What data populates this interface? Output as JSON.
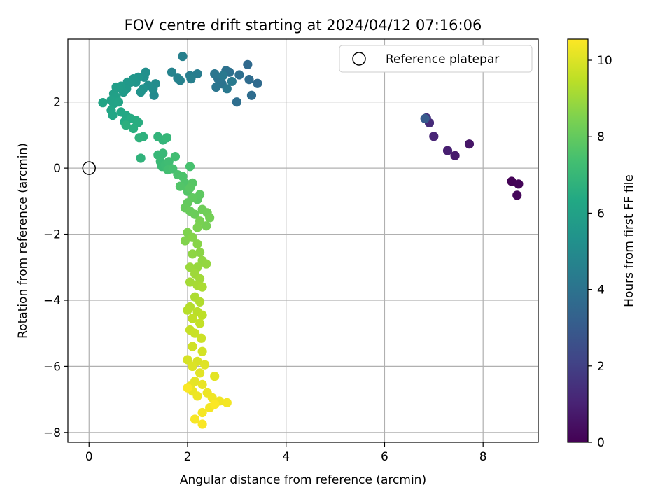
{
  "chart_data": {
    "type": "scatter",
    "title": "FOV centre drift starting at 2024/04/12 07:16:06",
    "xlabel": "Angular distance from reference (arcmin)",
    "ylabel": "Rotation from reference (arcmin)",
    "xlim": [
      -0.43,
      9.12
    ],
    "ylim": [
      -8.3,
      3.9
    ],
    "xticks": [
      0,
      2,
      4,
      6,
      8
    ],
    "yticks": [
      2,
      0,
      -2,
      -4,
      -6,
      -8
    ],
    "grid": true,
    "legend": {
      "position": "top-right",
      "entries": [
        "Reference platepar"
      ]
    },
    "reference_point": {
      "x": 0,
      "y": 0,
      "marker": "open-circle",
      "color": "#000000"
    },
    "colorbar": {
      "label": "Hours from first FF file",
      "range": [
        0,
        10.55
      ],
      "ticks": [
        0,
        2,
        4,
        6,
        8,
        10
      ],
      "colormap": "viridis"
    },
    "series": [
      {
        "points": [
          {
            "x": 8.58,
            "y": -0.4,
            "c": 0.05
          },
          {
            "x": 8.72,
            "y": -0.48,
            "c": 0.12
          },
          {
            "x": 8.69,
            "y": -0.82,
            "c": 0.2
          },
          {
            "x": 7.72,
            "y": 0.73,
            "c": 0.6
          },
          {
            "x": 7.43,
            "y": 0.38,
            "c": 0.75
          },
          {
            "x": 7.28,
            "y": 0.53,
            "c": 0.9
          },
          {
            "x": 7.0,
            "y": 0.96,
            "c": 1.1
          },
          {
            "x": 6.91,
            "y": 1.37,
            "c": 1.3
          },
          {
            "x": 6.85,
            "y": 1.52,
            "c": 1.5
          },
          {
            "x": 6.82,
            "y": 1.5,
            "c": 3.0
          },
          {
            "x": 3.22,
            "y": 3.13,
            "c": 3.6
          },
          {
            "x": 3.42,
            "y": 2.56,
            "c": 3.65
          },
          {
            "x": 3.25,
            "y": 2.68,
            "c": 3.7
          },
          {
            "x": 3.3,
            "y": 2.2,
            "c": 3.75
          },
          {
            "x": 3.0,
            "y": 2.0,
            "c": 3.8
          },
          {
            "x": 3.05,
            "y": 2.82,
            "c": 3.85
          },
          {
            "x": 2.85,
            "y": 2.9,
            "c": 3.9
          },
          {
            "x": 2.78,
            "y": 2.95,
            "c": 3.95
          },
          {
            "x": 2.7,
            "y": 2.55,
            "c": 4.0
          },
          {
            "x": 2.62,
            "y": 2.7,
            "c": 4.05
          },
          {
            "x": 2.58,
            "y": 2.45,
            "c": 4.1
          },
          {
            "x": 2.55,
            "y": 2.85,
            "c": 4.15
          },
          {
            "x": 2.8,
            "y": 2.4,
            "c": 4.2
          },
          {
            "x": 2.72,
            "y": 2.8,
            "c": 4.25
          },
          {
            "x": 2.9,
            "y": 2.62,
            "c": 4.3
          },
          {
            "x": 2.2,
            "y": 2.85,
            "c": 4.4
          },
          {
            "x": 2.05,
            "y": 2.8,
            "c": 4.45
          },
          {
            "x": 2.07,
            "y": 2.7,
            "c": 4.5
          },
          {
            "x": 1.9,
            "y": 3.38,
            "c": 4.55
          },
          {
            "x": 1.85,
            "y": 2.65,
            "c": 4.6
          },
          {
            "x": 1.8,
            "y": 2.72,
            "c": 4.65
          },
          {
            "x": 1.68,
            "y": 2.9,
            "c": 4.7
          },
          {
            "x": 1.32,
            "y": 2.2,
            "c": 5.0
          },
          {
            "x": 1.35,
            "y": 2.55,
            "c": 5.05
          },
          {
            "x": 1.3,
            "y": 2.4,
            "c": 5.1
          },
          {
            "x": 1.2,
            "y": 2.5,
            "c": 5.15
          },
          {
            "x": 1.15,
            "y": 2.9,
            "c": 5.2
          },
          {
            "x": 1.12,
            "y": 2.75,
            "c": 5.25
          },
          {
            "x": 1.1,
            "y": 2.4,
            "c": 5.3
          },
          {
            "x": 1.05,
            "y": 2.3,
            "c": 5.35
          },
          {
            "x": 1.0,
            "y": 2.75,
            "c": 5.4
          },
          {
            "x": 0.95,
            "y": 2.6,
            "c": 5.45
          },
          {
            "x": 0.9,
            "y": 2.7,
            "c": 5.5
          },
          {
            "x": 0.85,
            "y": 2.6,
            "c": 5.55
          },
          {
            "x": 0.78,
            "y": 2.6,
            "c": 5.6
          },
          {
            "x": 0.76,
            "y": 2.4,
            "c": 5.65
          },
          {
            "x": 0.7,
            "y": 2.3,
            "c": 5.7
          },
          {
            "x": 0.65,
            "y": 2.48,
            "c": 5.75
          },
          {
            "x": 0.6,
            "y": 2.42,
            "c": 5.8
          },
          {
            "x": 0.55,
            "y": 2.45,
            "c": 5.85
          },
          {
            "x": 0.5,
            "y": 2.25,
            "c": 5.9
          },
          {
            "x": 0.55,
            "y": 2.15,
            "c": 5.95
          },
          {
            "x": 0.45,
            "y": 2.05,
            "c": 6.0
          },
          {
            "x": 0.5,
            "y": 1.95,
            "c": 6.05
          },
          {
            "x": 0.6,
            "y": 2.0,
            "c": 6.1
          },
          {
            "x": 0.28,
            "y": 1.98,
            "c": 6.15
          },
          {
            "x": 0.45,
            "y": 1.75,
            "c": 6.2
          },
          {
            "x": 0.48,
            "y": 1.6,
            "c": 6.25
          },
          {
            "x": 0.65,
            "y": 1.7,
            "c": 6.3
          },
          {
            "x": 0.75,
            "y": 1.6,
            "c": 6.35
          },
          {
            "x": 0.72,
            "y": 1.4,
            "c": 6.4
          },
          {
            "x": 0.85,
            "y": 1.5,
            "c": 6.45
          },
          {
            "x": 0.95,
            "y": 1.45,
            "c": 6.5
          },
          {
            "x": 1.0,
            "y": 1.38,
            "c": 6.55
          },
          {
            "x": 0.9,
            "y": 1.2,
            "c": 6.6
          },
          {
            "x": 0.75,
            "y": 1.3,
            "c": 6.65
          },
          {
            "x": 1.1,
            "y": 0.95,
            "c": 6.7
          },
          {
            "x": 1.02,
            "y": 0.92,
            "c": 6.75
          },
          {
            "x": 1.05,
            "y": 0.3,
            "c": 6.8
          },
          {
            "x": 1.4,
            "y": 0.95,
            "c": 6.85
          },
          {
            "x": 1.5,
            "y": 0.85,
            "c": 6.9
          },
          {
            "x": 1.58,
            "y": 0.92,
            "c": 6.95
          },
          {
            "x": 1.4,
            "y": 0.4,
            "c": 7.0
          },
          {
            "x": 1.5,
            "y": 0.45,
            "c": 7.05
          },
          {
            "x": 1.45,
            "y": 0.2,
            "c": 7.1
          },
          {
            "x": 1.48,
            "y": 0.05,
            "c": 7.15
          },
          {
            "x": 1.55,
            "y": 0.1,
            "c": 7.2
          },
          {
            "x": 1.62,
            "y": 0.2,
            "c": 7.25
          },
          {
            "x": 1.75,
            "y": 0.35,
            "c": 7.3
          },
          {
            "x": 1.6,
            "y": -0.05,
            "c": 7.35
          },
          {
            "x": 1.7,
            "y": -0.02,
            "c": 7.4
          },
          {
            "x": 2.05,
            "y": 0.05,
            "c": 7.45
          },
          {
            "x": 1.8,
            "y": -0.2,
            "c": 7.5
          },
          {
            "x": 1.9,
            "y": -0.25,
            "c": 7.55
          },
          {
            "x": 1.95,
            "y": -0.45,
            "c": 7.6
          },
          {
            "x": 1.85,
            "y": -0.55,
            "c": 7.65
          },
          {
            "x": 2.0,
            "y": -0.7,
            "c": 7.7
          },
          {
            "x": 2.1,
            "y": -0.45,
            "c": 7.75
          },
          {
            "x": 2.05,
            "y": -0.6,
            "c": 7.8
          },
          {
            "x": 2.2,
            "y": -0.95,
            "c": 7.85
          },
          {
            "x": 2.25,
            "y": -0.8,
            "c": 7.9
          },
          {
            "x": 2.1,
            "y": -0.9,
            "c": 7.95
          },
          {
            "x": 2.0,
            "y": -1.05,
            "c": 8.0
          },
          {
            "x": 1.95,
            "y": -1.2,
            "c": 8.05
          },
          {
            "x": 2.05,
            "y": -1.3,
            "c": 8.1
          },
          {
            "x": 2.15,
            "y": -1.4,
            "c": 8.15
          },
          {
            "x": 2.3,
            "y": -1.25,
            "c": 8.2
          },
          {
            "x": 2.4,
            "y": -1.35,
            "c": 8.25
          },
          {
            "x": 2.45,
            "y": -1.5,
            "c": 8.3
          },
          {
            "x": 2.38,
            "y": -1.75,
            "c": 8.35
          },
          {
            "x": 2.25,
            "y": -1.6,
            "c": 8.4
          },
          {
            "x": 2.2,
            "y": -1.8,
            "c": 8.45
          },
          {
            "x": 2.0,
            "y": -1.95,
            "c": 8.5
          },
          {
            "x": 1.95,
            "y": -2.2,
            "c": 8.55
          },
          {
            "x": 2.1,
            "y": -2.1,
            "c": 8.6
          },
          {
            "x": 2.2,
            "y": -2.3,
            "c": 8.65
          },
          {
            "x": 2.25,
            "y": -2.55,
            "c": 8.7
          },
          {
            "x": 2.1,
            "y": -2.6,
            "c": 8.75
          },
          {
            "x": 2.3,
            "y": -2.8,
            "c": 8.8
          },
          {
            "x": 2.38,
            "y": -2.9,
            "c": 8.85
          },
          {
            "x": 2.2,
            "y": -3.0,
            "c": 8.9
          },
          {
            "x": 2.05,
            "y": -3.0,
            "c": 8.95
          },
          {
            "x": 2.15,
            "y": -3.2,
            "c": 9.0
          },
          {
            "x": 2.25,
            "y": -3.35,
            "c": 9.05
          },
          {
            "x": 2.05,
            "y": -3.45,
            "c": 9.1
          },
          {
            "x": 2.2,
            "y": -3.55,
            "c": 9.15
          },
          {
            "x": 2.3,
            "y": -3.6,
            "c": 9.2
          },
          {
            "x": 2.15,
            "y": -3.9,
            "c": 9.25
          },
          {
            "x": 2.25,
            "y": -4.05,
            "c": 9.3
          },
          {
            "x": 2.05,
            "y": -4.2,
            "c": 9.35
          },
          {
            "x": 2.0,
            "y": -4.3,
            "c": 9.4
          },
          {
            "x": 2.2,
            "y": -4.35,
            "c": 9.45
          },
          {
            "x": 2.3,
            "y": -4.45,
            "c": 9.5
          },
          {
            "x": 2.1,
            "y": -4.55,
            "c": 9.55
          },
          {
            "x": 2.25,
            "y": -4.7,
            "c": 9.6
          },
          {
            "x": 2.05,
            "y": -4.9,
            "c": 9.65
          },
          {
            "x": 2.15,
            "y": -5.0,
            "c": 9.7
          },
          {
            "x": 2.28,
            "y": -5.15,
            "c": 9.75
          },
          {
            "x": 2.1,
            "y": -5.4,
            "c": 9.8
          },
          {
            "x": 2.3,
            "y": -5.55,
            "c": 9.85
          },
          {
            "x": 2.0,
            "y": -5.8,
            "c": 9.9
          },
          {
            "x": 2.2,
            "y": -5.85,
            "c": 9.95
          },
          {
            "x": 2.1,
            "y": -6.0,
            "c": 10.0
          },
          {
            "x": 2.35,
            "y": -5.95,
            "c": 10.05
          },
          {
            "x": 2.25,
            "y": -6.2,
            "c": 10.1
          },
          {
            "x": 2.55,
            "y": -6.3,
            "c": 10.12
          },
          {
            "x": 2.15,
            "y": -6.45,
            "c": 10.15
          },
          {
            "x": 2.05,
            "y": -6.6,
            "c": 10.2
          },
          {
            "x": 2.3,
            "y": -6.55,
            "c": 10.22
          },
          {
            "x": 2.1,
            "y": -6.75,
            "c": 10.25
          },
          {
            "x": 2.4,
            "y": -6.8,
            "c": 10.28
          },
          {
            "x": 2.2,
            "y": -6.9,
            "c": 10.3
          },
          {
            "x": 2.5,
            "y": -6.95,
            "c": 10.32
          },
          {
            "x": 2.65,
            "y": -7.05,
            "c": 10.35
          },
          {
            "x": 2.8,
            "y": -7.1,
            "c": 10.38
          },
          {
            "x": 2.45,
            "y": -7.25,
            "c": 10.4
          },
          {
            "x": 2.3,
            "y": -7.4,
            "c": 10.42
          },
          {
            "x": 2.15,
            "y": -7.6,
            "c": 10.45
          },
          {
            "x": 2.3,
            "y": -7.75,
            "c": 10.48
          },
          {
            "x": 2.0,
            "y": -6.65,
            "c": 10.5
          },
          {
            "x": 2.55,
            "y": -7.15,
            "c": 10.52
          }
        ]
      }
    ]
  }
}
